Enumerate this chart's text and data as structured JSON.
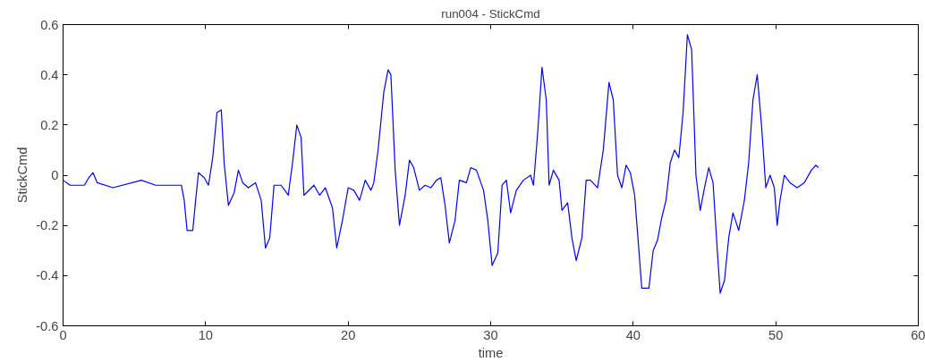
{
  "chart_data": {
    "type": "line",
    "title": "run004 - StickCmd",
    "xlabel": "time",
    "ylabel": "StickCmd",
    "xlim": [
      0,
      60
    ],
    "ylim": [
      -0.6,
      0.6
    ],
    "xticks": [
      0,
      10,
      20,
      30,
      40,
      50,
      60
    ],
    "yticks": [
      -0.6,
      -0.4,
      -0.2,
      0,
      0.2,
      0.4,
      0.6
    ],
    "grid": false,
    "series": [
      {
        "color": "#0000ff",
        "x": [
          0,
          0.5,
          1.5,
          1.8,
          2.1,
          2.4,
          3.5,
          5.5,
          6.5,
          8.3,
          8.5,
          8.7,
          9.1,
          9.3,
          9.5,
          9.9,
          10.2,
          10.5,
          10.8,
          11.1,
          11.3,
          11.6,
          12.0,
          12.3,
          12.6,
          13.0,
          13.5,
          13.9,
          14.2,
          14.5,
          14.8,
          15.3,
          15.8,
          16.1,
          16.4,
          16.7,
          16.9,
          17.6,
          18.0,
          18.4,
          18.9,
          19.2,
          19.6,
          20.0,
          20.4,
          20.8,
          21.2,
          21.6,
          21.8,
          22.1,
          22.5,
          22.8,
          23.0,
          23.3,
          23.6,
          24.0,
          24.3,
          24.6,
          25.0,
          25.4,
          25.8,
          26.2,
          26.5,
          26.8,
          27.1,
          27.5,
          27.8,
          28.3,
          28.6,
          29.0,
          29.5,
          29.8,
          30.1,
          30.5,
          30.8,
          31.1,
          31.4,
          31.8,
          32.3,
          32.8,
          33.0,
          33.3,
          33.6,
          33.9,
          34.1,
          34.4,
          34.8,
          35.0,
          35.4,
          35.7,
          36.0,
          36.4,
          36.7,
          37.0,
          37.5,
          37.9,
          38.3,
          38.6,
          38.9,
          39.2,
          39.5,
          39.8,
          40.1,
          40.4,
          40.6,
          41.1,
          41.4,
          41.7,
          42.0,
          42.3,
          42.6,
          42.9,
          43.2,
          43.5,
          43.8,
          44.1,
          44.4,
          44.7,
          45.0,
          45.3,
          45.6,
          45.9,
          46.1,
          46.4,
          46.7,
          47.0,
          47.4,
          47.8,
          48.1,
          48.4,
          48.7,
          49.0,
          49.3,
          49.6,
          49.9,
          50.1,
          50.3,
          50.6,
          51.0,
          51.5,
          52.0,
          52.5,
          52.8,
          53.0
        ],
        "values": [
          -0.02,
          -0.04,
          -0.04,
          -0.01,
          0.01,
          -0.03,
          -0.05,
          -0.02,
          -0.04,
          -0.04,
          -0.1,
          -0.22,
          -0.22,
          -0.1,
          0.01,
          -0.01,
          -0.04,
          0.07,
          0.25,
          0.26,
          0.05,
          -0.12,
          -0.07,
          0.02,
          -0.03,
          -0.05,
          -0.03,
          -0.1,
          -0.29,
          -0.25,
          -0.04,
          -0.04,
          -0.08,
          0.05,
          0.2,
          0.15,
          -0.08,
          -0.04,
          -0.08,
          -0.05,
          -0.13,
          -0.29,
          -0.18,
          -0.05,
          -0.06,
          -0.1,
          -0.02,
          -0.06,
          -0.03,
          0.1,
          0.33,
          0.42,
          0.4,
          0.02,
          -0.2,
          -0.08,
          0.06,
          0.03,
          -0.06,
          -0.04,
          -0.05,
          -0.02,
          -0.01,
          -0.12,
          -0.27,
          -0.18,
          -0.02,
          -0.03,
          0.03,
          0.02,
          -0.06,
          -0.18,
          -0.36,
          -0.31,
          -0.04,
          -0.02,
          -0.15,
          -0.06,
          -0.02,
          0.0,
          -0.04,
          0.17,
          0.43,
          0.3,
          -0.04,
          0.02,
          -0.02,
          -0.14,
          -0.11,
          -0.25,
          -0.34,
          -0.25,
          -0.02,
          -0.02,
          -0.05,
          0.1,
          0.37,
          0.3,
          0.0,
          -0.05,
          0.04,
          0.01,
          -0.08,
          -0.3,
          -0.45,
          -0.45,
          -0.3,
          -0.26,
          -0.17,
          -0.1,
          0.05,
          0.1,
          0.07,
          0.25,
          0.56,
          0.5,
          0.0,
          -0.14,
          -0.05,
          0.03,
          -0.03,
          -0.3,
          -0.47,
          -0.42,
          -0.25,
          -0.15,
          -0.22,
          -0.1,
          0.05,
          0.3,
          0.4,
          0.2,
          -0.05,
          0.0,
          -0.05,
          -0.2,
          -0.1,
          0.0,
          -0.03,
          -0.05,
          -0.03,
          0.02,
          0.04,
          0.03
        ]
      }
    ]
  }
}
